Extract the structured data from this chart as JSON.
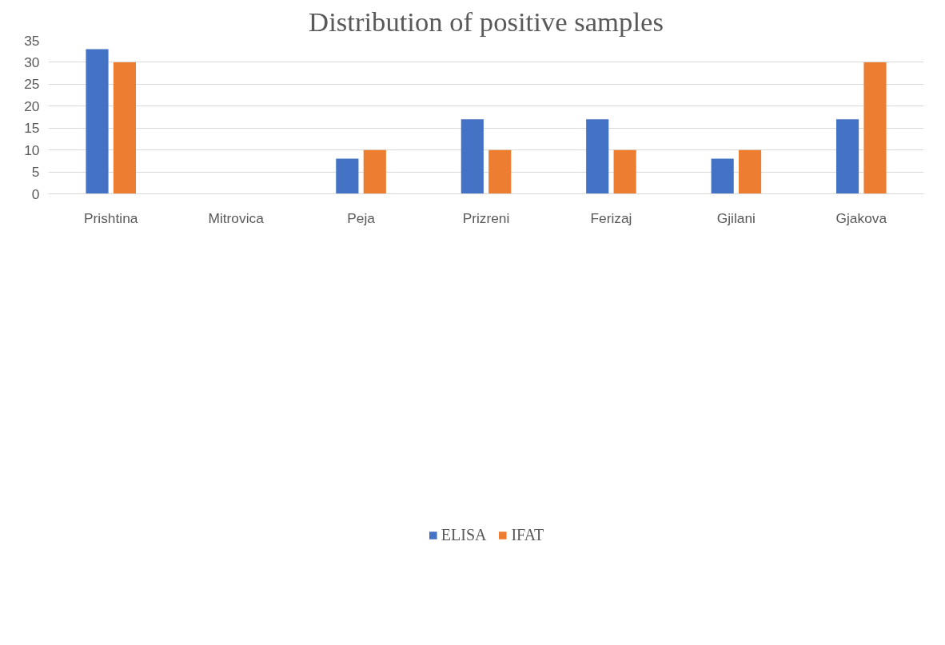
{
  "chart_data": {
    "type": "bar",
    "title": "Distribution of positive samples",
    "categories": [
      "Prishtina",
      "Mitrovica",
      "Peja",
      "Prizreni",
      "Ferizaj",
      "Gjilani",
      "Gjakova"
    ],
    "series": [
      {
        "name": "ELISA",
        "color": "#4472c4",
        "values": [
          33,
          0,
          8,
          17,
          17,
          8,
          17
        ]
      },
      {
        "name": "IFAT",
        "color": "#ed7d31",
        "values": [
          30,
          0,
          10,
          10,
          10,
          10,
          30
        ]
      }
    ],
    "ylim": [
      0,
      35
    ],
    "yticks": [
      0,
      5,
      10,
      15,
      20,
      25,
      30,
      35
    ],
    "grid": "y",
    "legend": "bottom"
  }
}
